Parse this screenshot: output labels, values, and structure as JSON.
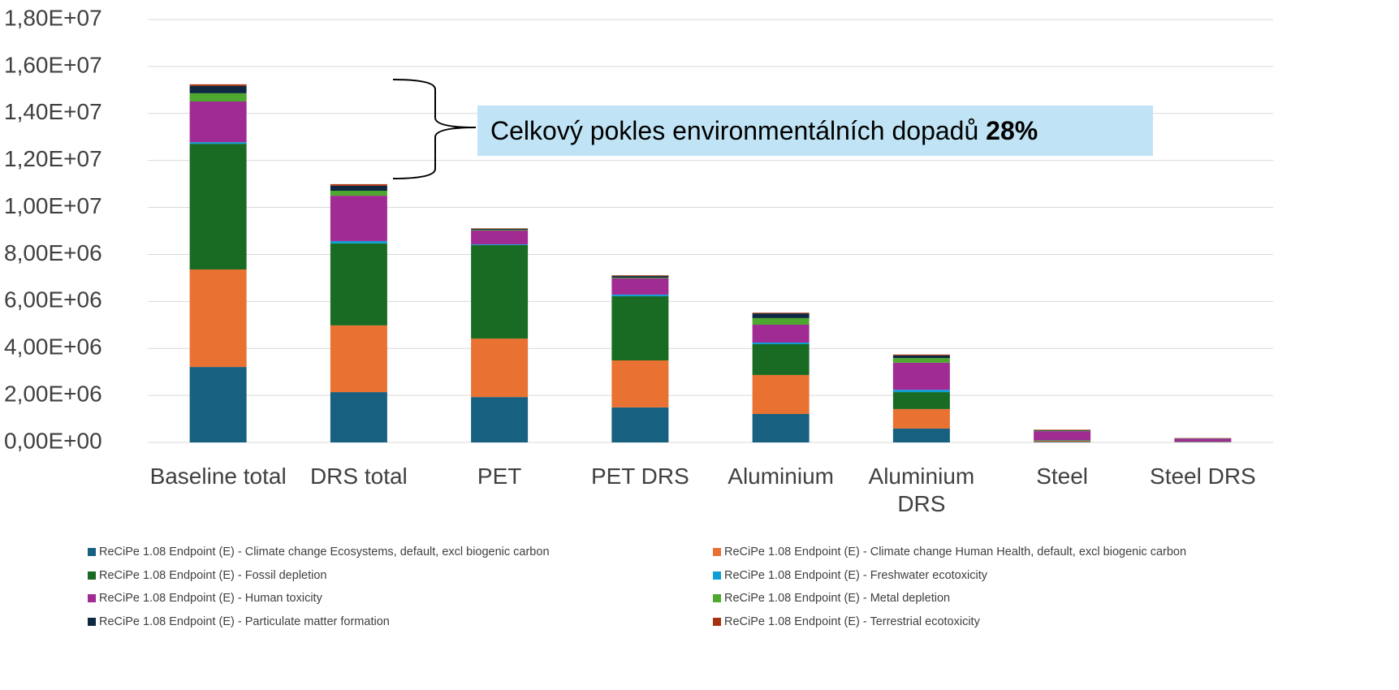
{
  "chart_data": {
    "type": "stacked_bar",
    "annotation": {
      "text": "Celkový pokles environmentálních dopadů",
      "emphasis": "28%"
    },
    "categories": [
      "Baseline total",
      "DRS total",
      "PET",
      "PET DRS",
      "Aluminium",
      "Aluminium DRS",
      "Steel",
      "Steel DRS"
    ],
    "series": [
      {
        "name": "ReCiPe 1.08 Endpoint (E) - Climate change Ecosystems, default, excl biogenic carbon",
        "color": "#17607f",
        "values": [
          3210000,
          2140000,
          1930000,
          1490000,
          1210000,
          590000,
          30000,
          10000
        ]
      },
      {
        "name": "ReCiPe 1.08 Endpoint (E) - Climate change Human Health, default, excl biogenic carbon",
        "color": "#e97132",
        "values": [
          4150000,
          2840000,
          2490000,
          2000000,
          1660000,
          830000,
          40000,
          10000
        ]
      },
      {
        "name": "ReCiPe 1.08 Endpoint (E) - Fossil depletion",
        "color": "#196b24",
        "values": [
          5350000,
          3490000,
          3980000,
          2730000,
          1310000,
          720000,
          20000,
          10000
        ]
      },
      {
        "name": "ReCiPe 1.08 Endpoint (E) - Freshwater ecotoxicity",
        "color": "#0f9ed5",
        "values": [
          70000,
          100000,
          30000,
          70000,
          70000,
          100000,
          10000,
          5000
        ]
      },
      {
        "name": "ReCiPe 1.08 Endpoint (E) - Human toxicity",
        "color": "#a02b93",
        "values": [
          1730000,
          1930000,
          590000,
          690000,
          760000,
          1150000,
          380000,
          120000
        ]
      },
      {
        "name": "ReCiPe 1.08 Endpoint (E) - Metal depletion",
        "color": "#4ea72e",
        "values": [
          350000,
          210000,
          30000,
          30000,
          280000,
          200000,
          20000,
          10000
        ]
      },
      {
        "name": "ReCiPe 1.08 Endpoint (E) - Particulate matter formation",
        "color": "#0e2841",
        "values": [
          310000,
          210000,
          40000,
          70000,
          200000,
          110000,
          20000,
          10000
        ]
      },
      {
        "name": "ReCiPe 1.08 Endpoint (E) - Terrestrial ecotoxicity",
        "color": "#a5330f",
        "values": [
          70000,
          70000,
          20000,
          30000,
          30000,
          40000,
          20000,
          10000
        ]
      }
    ],
    "ylim": [
      0,
      18000000
    ],
    "yticks": [
      {
        "value": 0,
        "label": "0,00E+00"
      },
      {
        "value": 2000000,
        "label": "2,00E+06"
      },
      {
        "value": 4000000,
        "label": "4,00E+06"
      },
      {
        "value": 6000000,
        "label": "6,00E+06"
      },
      {
        "value": 8000000,
        "label": "8,00E+06"
      },
      {
        "value": 10000000,
        "label": "1,00E+07"
      },
      {
        "value": 12000000,
        "label": "1,20E+07"
      },
      {
        "value": 14000000,
        "label": "1,40E+07"
      },
      {
        "value": 16000000,
        "label": "1,60E+07"
      },
      {
        "value": 18000000,
        "label": "1,80E+07"
      }
    ],
    "grid": true
  }
}
